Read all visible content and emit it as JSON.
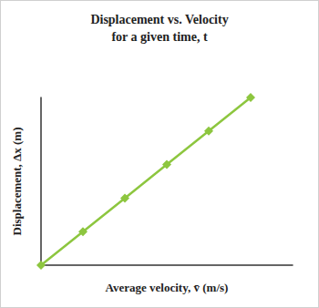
{
  "chart_data": {
    "type": "line",
    "title": "Displacement vs. Velocity\nfor a given time, t",
    "x_label": "Average velocity, v̄ (m/s)",
    "y_label": "Displacement, Δx (m)",
    "x": [
      0,
      1,
      2,
      3,
      4,
      5
    ],
    "values": [
      0,
      1,
      2,
      3,
      4,
      5
    ],
    "xlim": [
      0,
      6
    ],
    "ylim": [
      0,
      5
    ],
    "color": "#8dc63f",
    "marker": "diamond",
    "line_style": "solid",
    "grid": false,
    "tick_labels": false
  }
}
